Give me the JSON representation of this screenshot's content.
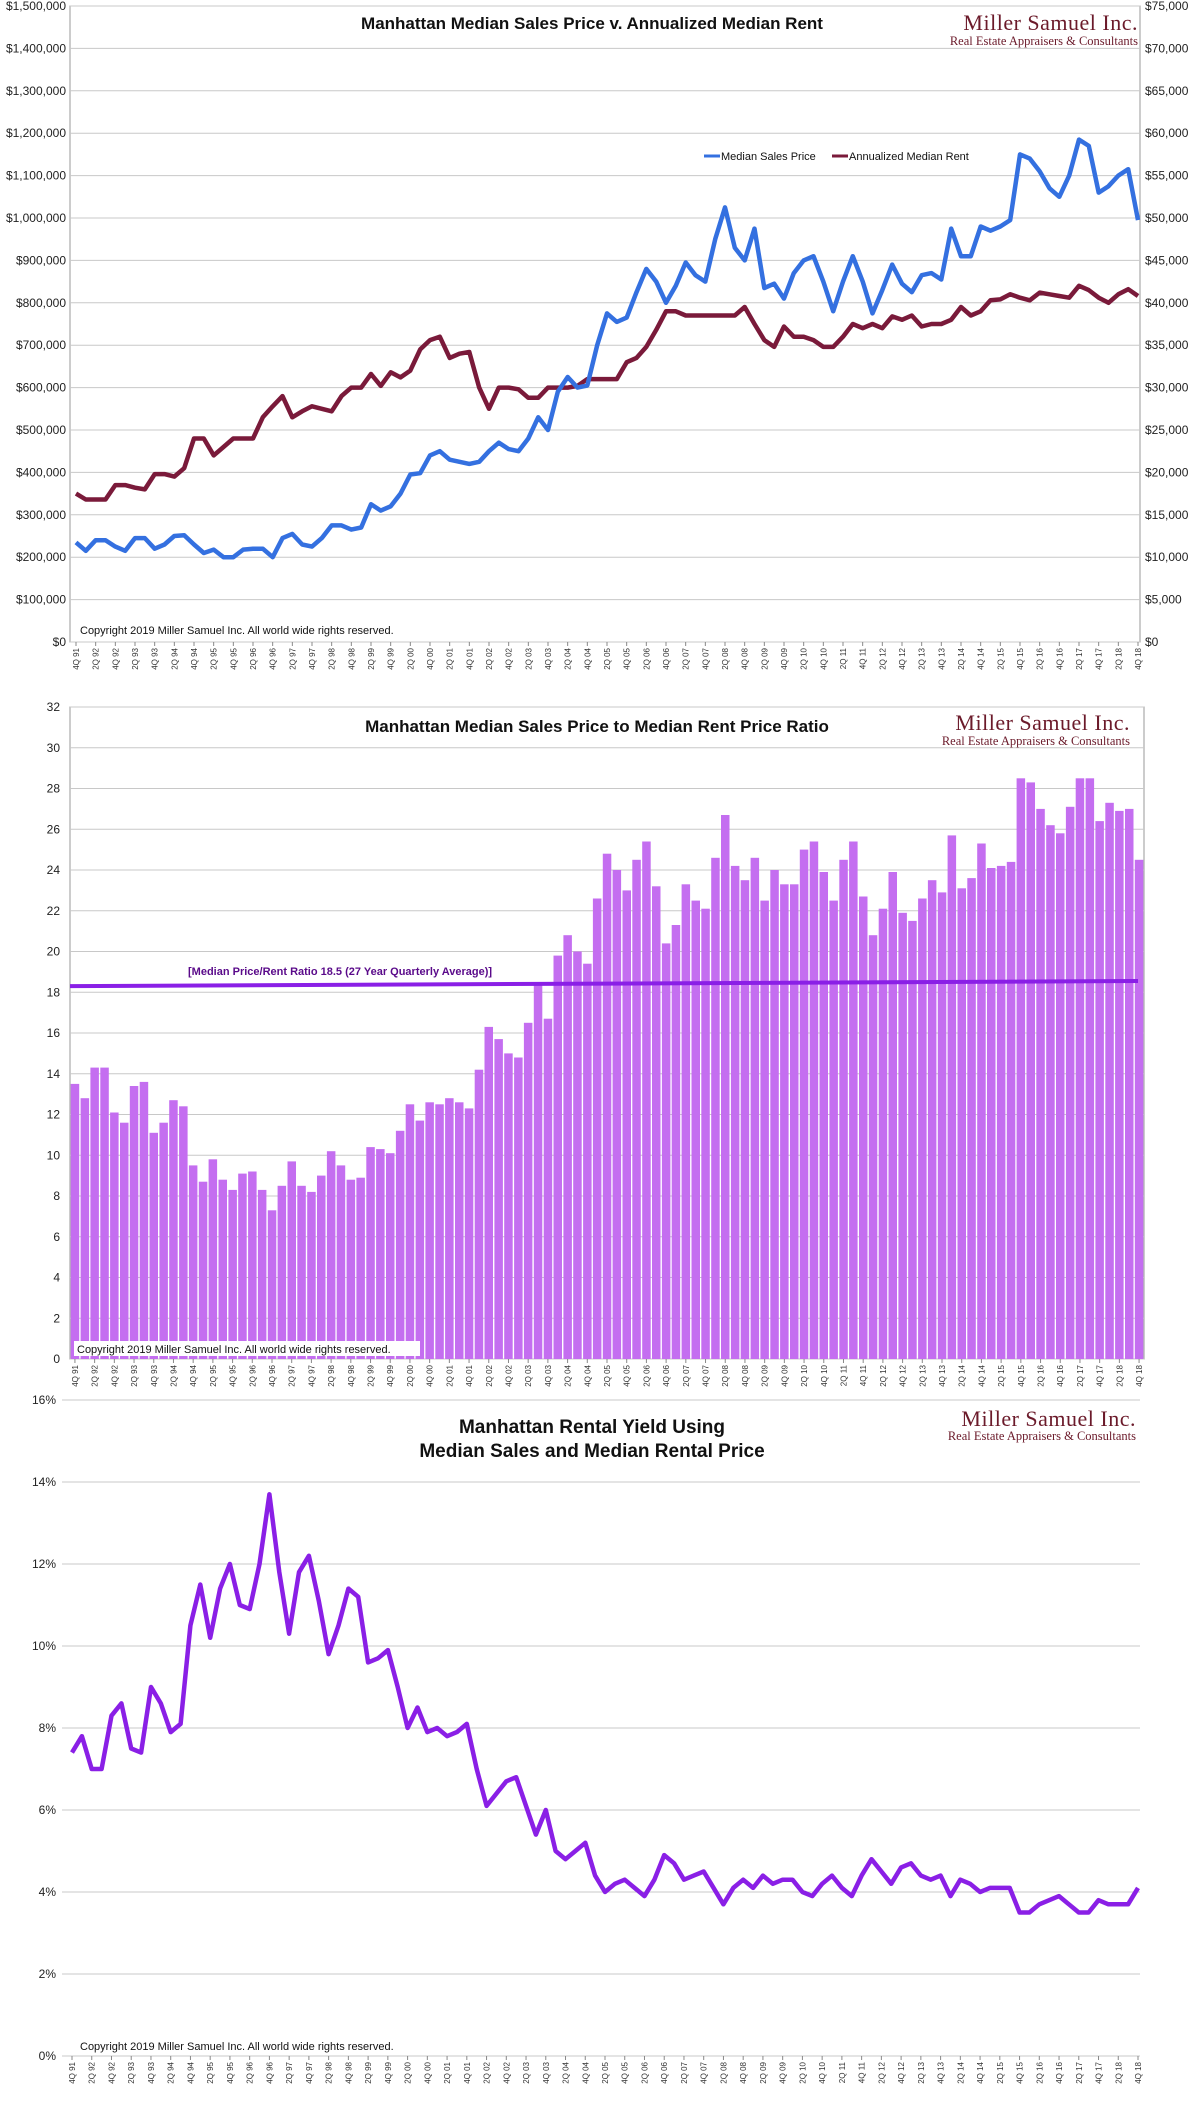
{
  "colors": {
    "sales_line": "#3470e0",
    "rent_line": "#7a1a3a",
    "bar_fill": "#c46ef0",
    "avg_line": "#8a1fe6",
    "yield_line": "#8a1fe6",
    "grid": "#c8c8c8",
    "brand": "#6b1a2a"
  },
  "brand": {
    "name": "Miller Samuel Inc.",
    "tagline": "Real Estate Appraisers & Consultants"
  },
  "copyright": "Copyright 2019 Miller Samuel Inc. All world wide rights reserved.",
  "chart_data": [
    {
      "type": "line",
      "title": "Manhattan Median Sales Price v. Annualized Median Rent",
      "xlabel": "",
      "ylabel": "",
      "ylim": [
        0,
        1500000
      ],
      "y2lim": [
        0,
        75000
      ],
      "y_ticks": [
        "$0",
        "$100,000",
        "$200,000",
        "$300,000",
        "$400,000",
        "$500,000",
        "$600,000",
        "$700,000",
        "$800,000",
        "$900,000",
        "$1,000,000",
        "$1,100,000",
        "$1,200,000",
        "$1,300,000",
        "$1,400,000",
        "$1,500,000"
      ],
      "y2_ticks": [
        "$0",
        "$5,000",
        "$10,000",
        "$15,000",
        "$20,000",
        "$25,000",
        "$30,000",
        "$35,000",
        "$40,000",
        "$45,000",
        "$50,000",
        "$55,000",
        "$60,000",
        "$65,000",
        "$70,000",
        "$75,000"
      ],
      "x_tick_labels": [
        "4Q 91",
        "2Q 92",
        "4Q 92",
        "2Q 93",
        "4Q 93",
        "2Q 94",
        "4Q 94",
        "2Q 95",
        "4Q 95",
        "2Q 96",
        "4Q 96",
        "2Q 97",
        "4Q 97",
        "2Q 98",
        "4Q 98",
        "2Q 99",
        "4Q 99",
        "2Q 00",
        "4Q 00",
        "2Q 01",
        "4Q 01",
        "2Q 02",
        "4Q 02",
        "2Q 03",
        "4Q 03",
        "2Q 04",
        "4Q 04",
        "2Q 05",
        "4Q 05",
        "2Q 06",
        "4Q 06",
        "2Q 07",
        "4Q 07",
        "2Q 08",
        "4Q 08",
        "2Q 09",
        "4Q 09",
        "2Q 10",
        "4Q 10",
        "2Q 11",
        "4Q 11",
        "2Q 12",
        "4Q 12",
        "2Q 13",
        "4Q 13",
        "2Q 14",
        "4Q 14",
        "2Q 15",
        "4Q 15",
        "2Q 16",
        "4Q 16",
        "2Q 17",
        "4Q 17",
        "2Q 18",
        "4Q 18"
      ],
      "grid": true,
      "legend_position": "top-right",
      "series": [
        {
          "name": "Median Sales Price",
          "axis": "left",
          "values": [
            235000,
            215000,
            240000,
            240000,
            225000,
            215000,
            245000,
            245000,
            220000,
            230000,
            250000,
            252000,
            230000,
            210000,
            218000,
            200000,
            200000,
            218000,
            220000,
            220000,
            200000,
            245000,
            255000,
            230000,
            225000,
            245000,
            275000,
            275000,
            265000,
            270000,
            325000,
            310000,
            320000,
            350000,
            395000,
            398000,
            440000,
            450000,
            430000,
            425000,
            420000,
            425000,
            450000,
            470000,
            455000,
            450000,
            480000,
            530000,
            500000,
            590000,
            625000,
            600000,
            605000,
            700000,
            775000,
            755000,
            765000,
            825000,
            880000,
            850000,
            800000,
            840000,
            895000,
            865000,
            850000,
            950000,
            1025000,
            930000,
            900000,
            975000,
            835000,
            845000,
            810000,
            870000,
            900000,
            910000,
            850000,
            780000,
            850000,
            910000,
            850000,
            775000,
            830000,
            890000,
            845000,
            825000,
            865000,
            870000,
            855000,
            975000,
            910000,
            910000,
            980000,
            970000,
            980000,
            995000,
            1150000,
            1140000,
            1110000,
            1070000,
            1050000,
            1100000,
            1185000,
            1170000,
            1060000,
            1075000,
            1100000,
            1115000,
            995000
          ]
        },
        {
          "name": "Annualized Median Rent",
          "axis": "right",
          "values": [
            17500,
            16800,
            16800,
            16800,
            18500,
            18500,
            18200,
            18000,
            19800,
            19800,
            19500,
            20500,
            24000,
            24000,
            22000,
            23000,
            24000,
            24000,
            24000,
            26500,
            27800,
            29000,
            26500,
            27200,
            27800,
            27500,
            27200,
            29000,
            30000,
            30000,
            31600,
            30200,
            31800,
            31200,
            32000,
            34500,
            35600,
            36000,
            33500,
            34000,
            34200,
            30000,
            27500,
            30000,
            30000,
            29800,
            28800,
            28800,
            30000,
            30000,
            30000,
            30200,
            31000,
            31000,
            31000,
            31000,
            33000,
            33500,
            34800,
            36800,
            39000,
            39000,
            38500,
            38500,
            38500,
            38500,
            38500,
            38500,
            39500,
            37500,
            35600,
            34800,
            37200,
            36000,
            36000,
            35600,
            34800,
            34800,
            36000,
            37500,
            37000,
            37500,
            37000,
            38400,
            38000,
            38500,
            37200,
            37500,
            37500,
            38000,
            39500,
            38500,
            39000,
            40300,
            40400,
            41000,
            40600,
            40300,
            41200,
            41000,
            40800,
            40600,
            42000,
            41500,
            40600,
            40000,
            41000,
            41600,
            40800
          ]
        }
      ]
    },
    {
      "type": "bar",
      "title": "Manhattan Median Sales Price to Median Rent Price Ratio",
      "xlabel": "",
      "ylabel": "",
      "ylim": [
        0,
        32
      ],
      "y_ticks": [
        "0",
        "2",
        "4",
        "6",
        "8",
        "10",
        "12",
        "14",
        "16",
        "18",
        "20",
        "22",
        "24",
        "26",
        "28",
        "30",
        "32"
      ],
      "x_tick_labels": [
        "4Q 91",
        "2Q 92",
        "4Q 92",
        "2Q 93",
        "4Q 93",
        "2Q 94",
        "4Q 94",
        "2Q 95",
        "4Q 95",
        "2Q 96",
        "4Q 96",
        "2Q 97",
        "4Q 97",
        "2Q 98",
        "4Q 98",
        "2Q 99",
        "4Q 99",
        "2Q 00",
        "4Q 00",
        "2Q 01",
        "4Q 01",
        "2Q 02",
        "4Q 02",
        "2Q 03",
        "4Q 03",
        "2Q 04",
        "4Q 04",
        "2Q 05",
        "4Q 05",
        "2Q 06",
        "4Q 06",
        "2Q 07",
        "4Q 07",
        "2Q 08",
        "4Q 08",
        "2Q 09",
        "4Q 09",
        "2Q 10",
        "4Q 10",
        "2Q 11",
        "4Q 11",
        "2Q 12",
        "4Q 12",
        "2Q 13",
        "4Q 13",
        "2Q 14",
        "4Q 14",
        "2Q 15",
        "4Q 15",
        "2Q 16",
        "4Q 16",
        "2Q 17",
        "4Q 17",
        "2Q 18",
        "4Q 18"
      ],
      "grid": true,
      "annotation": "[Median Price/Rent Ratio 18.5 (27 Year Quarterly Average)]",
      "average_line": [
        18.3,
        18.55
      ],
      "values": [
        13.5,
        12.8,
        14.3,
        14.3,
        12.1,
        11.6,
        13.4,
        13.6,
        11.1,
        11.6,
        12.7,
        12.4,
        9.5,
        8.7,
        9.8,
        8.8,
        8.3,
        9.1,
        9.2,
        8.3,
        7.3,
        8.5,
        9.7,
        8.5,
        8.2,
        9.0,
        10.2,
        9.5,
        8.8,
        8.9,
        10.4,
        10.3,
        10.1,
        11.2,
        12.5,
        11.7,
        12.6,
        12.5,
        12.8,
        12.6,
        12.3,
        14.2,
        16.3,
        15.7,
        15.0,
        14.8,
        16.5,
        18.4,
        16.7,
        19.8,
        20.8,
        20.0,
        19.4,
        22.6,
        24.8,
        24.0,
        23.0,
        24.5,
        25.4,
        23.2,
        20.4,
        21.3,
        23.3,
        22.5,
        22.1,
        24.6,
        26.7,
        24.2,
        23.5,
        24.6,
        22.5,
        24.0,
        23.3,
        23.3,
        25.0,
        25.4,
        23.9,
        22.5,
        24.5,
        25.4,
        22.7,
        20.8,
        22.1,
        23.9,
        21.9,
        21.5,
        22.6,
        23.5,
        22.9,
        25.7,
        23.1,
        23.6,
        25.3,
        24.1,
        24.2,
        24.4,
        28.5,
        28.3,
        27.0,
        26.2,
        25.8,
        27.1,
        28.5,
        28.5,
        26.4,
        27.3,
        26.9,
        27.0,
        24.5
      ]
    },
    {
      "type": "line",
      "title": "Manhattan Rental Yield Using\nMedian Sales and Median Rental Price",
      "xlabel": "",
      "ylabel": "",
      "ylim": [
        0,
        16
      ],
      "y_ticks": [
        "0%",
        "2%",
        "4%",
        "6%",
        "8%",
        "10%",
        "12%",
        "14%",
        "16%"
      ],
      "x_tick_labels": [
        "4Q 91",
        "2Q 92",
        "4Q 92",
        "2Q 93",
        "4Q 93",
        "2Q 94",
        "4Q 94",
        "2Q 95",
        "4Q 95",
        "2Q 96",
        "4Q 96",
        "2Q 97",
        "4Q 97",
        "2Q 98",
        "4Q 98",
        "2Q 99",
        "4Q 99",
        "2Q 00",
        "4Q 00",
        "2Q 01",
        "4Q 01",
        "2Q 02",
        "4Q 02",
        "2Q 03",
        "4Q 03",
        "2Q 04",
        "4Q 04",
        "2Q 05",
        "4Q 05",
        "2Q 06",
        "4Q 06",
        "2Q 07",
        "4Q 07",
        "2Q 08",
        "4Q 08",
        "2Q 09",
        "4Q 09",
        "2Q 10",
        "4Q 10",
        "2Q 11",
        "4Q 11",
        "2Q 12",
        "4Q 12",
        "2Q 13",
        "4Q 13",
        "2Q 14",
        "4Q 14",
        "2Q 15",
        "4Q 15",
        "2Q 16",
        "4Q 16",
        "2Q 17",
        "4Q 17",
        "2Q 18",
        "4Q 18"
      ],
      "grid": true,
      "values": [
        7.4,
        7.8,
        7.0,
        7.0,
        8.3,
        8.6,
        7.5,
        7.4,
        9.0,
        8.6,
        7.9,
        8.1,
        10.5,
        11.5,
        10.2,
        11.4,
        12.0,
        11.0,
        10.9,
        12.0,
        13.7,
        11.8,
        10.3,
        11.8,
        12.2,
        11.1,
        9.8,
        10.5,
        11.4,
        11.2,
        9.6,
        9.7,
        9.9,
        9.0,
        8.0,
        8.5,
        7.9,
        8.0,
        7.8,
        7.9,
        8.1,
        7.0,
        6.1,
        6.4,
        6.7,
        6.8,
        6.1,
        5.4,
        6.0,
        5.0,
        4.8,
        5.0,
        5.2,
        4.4,
        4.0,
        4.2,
        4.3,
        4.1,
        3.9,
        4.3,
        4.9,
        4.7,
        4.3,
        4.4,
        4.5,
        4.1,
        3.7,
        4.1,
        4.3,
        4.1,
        4.4,
        4.2,
        4.3,
        4.3,
        4.0,
        3.9,
        4.2,
        4.4,
        4.1,
        3.9,
        4.4,
        4.8,
        4.5,
        4.2,
        4.6,
        4.7,
        4.4,
        4.3,
        4.4,
        3.9,
        4.3,
        4.2,
        4.0,
        4.1,
        4.1,
        4.1,
        3.5,
        3.5,
        3.7,
        3.8,
        3.9,
        3.7,
        3.5,
        3.5,
        3.8,
        3.7,
        3.7,
        3.7,
        4.1
      ]
    }
  ]
}
